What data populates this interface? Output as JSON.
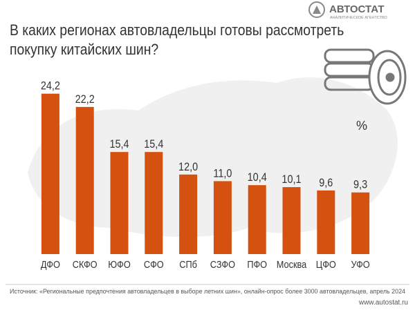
{
  "chart_data": {
    "type": "bar",
    "title": "В каких регионах автовладельцы готовы рассмотреть покупку китайских шин?",
    "unit": "%",
    "categories": [
      "ДФО",
      "СКФО",
      "ЮФО",
      "СФО",
      "СПб",
      "СЗФО",
      "ПФО",
      "Москва",
      "ЦФО",
      "УФО"
    ],
    "values": [
      24.2,
      22.2,
      15.4,
      15.4,
      12.0,
      11.0,
      10.4,
      10.1,
      9.6,
      9.3
    ],
    "value_labels": [
      "24,2",
      "22,2",
      "15,4",
      "15,4",
      "12,0",
      "11,0",
      "10,4",
      "10,1",
      "9,6",
      "9,3"
    ],
    "color": "#d4510f",
    "source": "Источник: «Региональные предпочтения автовладельцев в выборе летних шин», онлайн-опрос более 3000 автовладельцев, апрель 2024"
  },
  "logo": {
    "name": "АВТОСТАТ",
    "subtitle": "АНАЛИТИЧЕСКОЕ АГЕНТСТВО"
  },
  "website": "www.autostat.ru"
}
